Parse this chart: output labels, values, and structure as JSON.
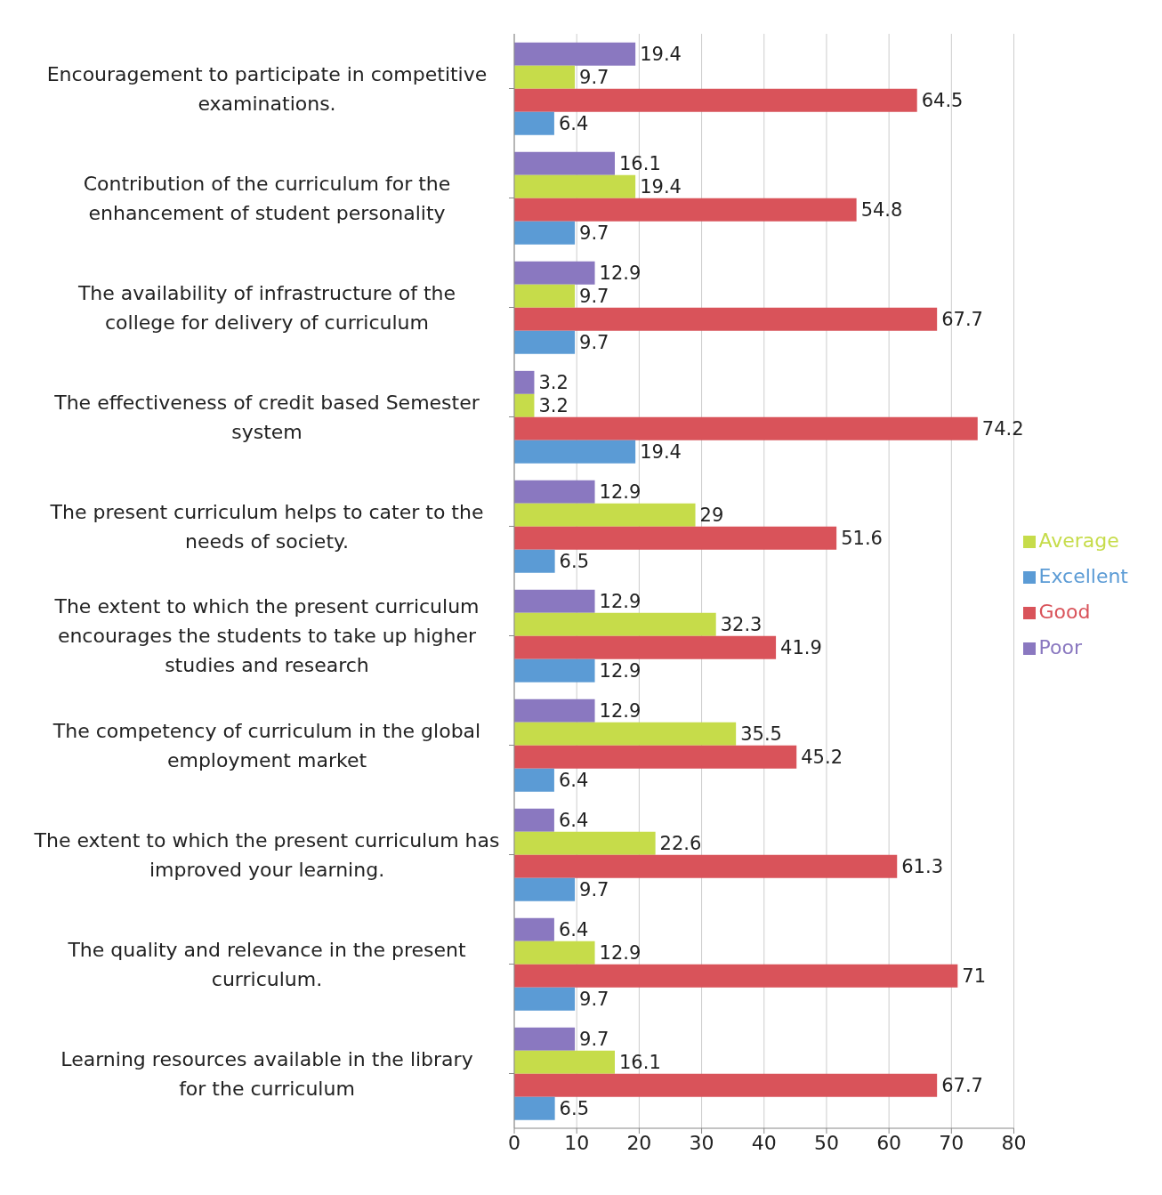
{
  "chart_data": {
    "type": "bar",
    "orientation": "horizontal",
    "categories": [
      "Encouragement to participate in competitive examinations.",
      "Contribution of the curriculum for the enhancement of student personality",
      "The availability of infrastructure of the college for delivery of curriculum",
      "The effectiveness of credit based Semester system",
      "The present curriculum helps to cater to the needs of society.",
      "The extent to which the present curriculum encourages the students to take up higher studies and research",
      "The competency of curriculum in the global employment market",
      "The extent to which the present curriculum has improved your learning.",
      "The quality and relevance in the present curriculum.",
      "Learning resources available in the library for the curriculum"
    ],
    "series": [
      {
        "name": "Poor",
        "color": "#8a78c0",
        "values": [
          19.4,
          16.1,
          12.9,
          3.2,
          12.9,
          12.9,
          12.9,
          6.4,
          6.4,
          9.7
        ]
      },
      {
        "name": "Average",
        "color": "#c6dc4a",
        "values": [
          9.7,
          19.4,
          9.7,
          3.2,
          29,
          32.3,
          35.5,
          22.6,
          12.9,
          16.1
        ]
      },
      {
        "name": "Good",
        "color": "#d9535a",
        "values": [
          64.5,
          54.8,
          67.7,
          74.2,
          51.6,
          41.9,
          45.2,
          61.3,
          71,
          67.7
        ]
      },
      {
        "name": "Excellent",
        "color": "#5b9bd5",
        "values": [
          6.4,
          9.7,
          9.7,
          19.4,
          6.5,
          12.9,
          6.4,
          9.7,
          9.7,
          6.5
        ]
      }
    ],
    "xlim": [
      0,
      80
    ],
    "xticks": [
      0,
      10,
      20,
      30,
      40,
      50,
      60,
      70,
      80
    ],
    "grid": "x",
    "legend": "right",
    "data_labels": true
  }
}
